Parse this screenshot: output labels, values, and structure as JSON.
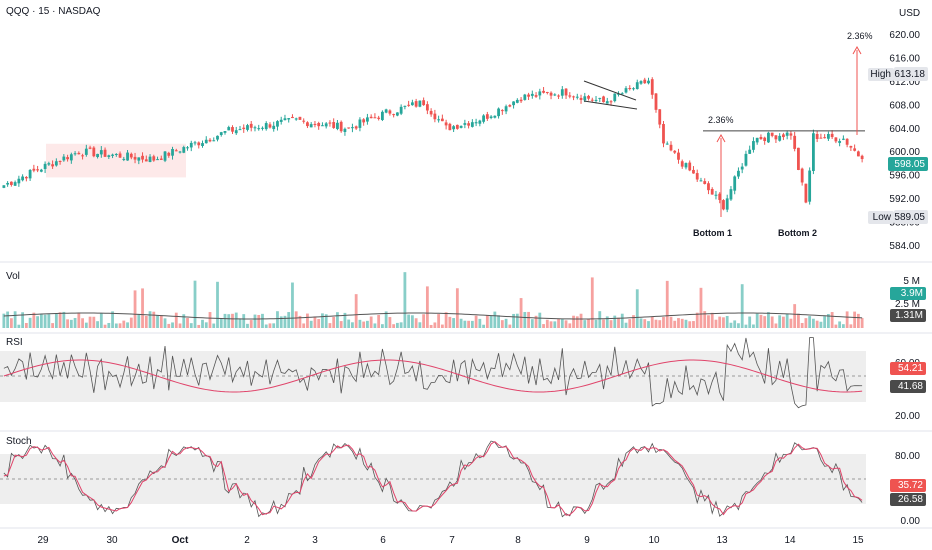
{
  "header": {
    "symbol_label": "QQQ · 15 · NASDAQ",
    "currency": "USD"
  },
  "price_axis": {
    "ticks": [
      "620.00",
      "616.00",
      "612.00",
      "608.00",
      "604.00",
      "600.00",
      "596.00",
      "592.00",
      "588.00",
      "584.00"
    ]
  },
  "price_tags": {
    "high_label": "High",
    "high_value": "613.18",
    "last_value": "598.05",
    "low_label": "Low",
    "low_value": "589.05"
  },
  "annotations": {
    "pct_small": "2.36%",
    "pct_large": "2.36%",
    "bottom1": "Bottom 1",
    "bottom2": "Bottom 2"
  },
  "volume_panel": {
    "label": "Vol",
    "ticks": [
      "5 M",
      "2.5 M"
    ],
    "tag_current": "3.9M",
    "tag_ma": "1.31M"
  },
  "rsi_panel": {
    "label": "RSI",
    "ticks": [
      "60.00",
      "20.00"
    ],
    "tag_ma": "54.21",
    "tag_rsi": "41.68"
  },
  "stoch_panel": {
    "label": "Stoch",
    "ticks": [
      "80.00",
      "0.00"
    ],
    "tag_k": "35.72",
    "tag_d": "26.58"
  },
  "time_axis": {
    "labels": [
      "29",
      "30",
      "Oct",
      "2",
      "3",
      "6",
      "7",
      "8",
      "9",
      "10",
      "13",
      "14",
      "15"
    ]
  },
  "colors": {
    "up": "#26a69a",
    "down": "#ef5350",
    "rsi_ma": "#e0446a",
    "line": "#555555",
    "band": "#eeeeee",
    "highlight": "#fde4e4"
  },
  "chart_data": {
    "type": "candlestick",
    "price_axis": {
      "range": [
        583,
        622
      ]
    },
    "price_key_points": [
      {
        "time": "29",
        "price": 593.0
      },
      {
        "time": "29",
        "price": 597.0
      },
      {
        "time": "29",
        "price": 599.5
      },
      {
        "time": "Oct",
        "price": 598.0
      },
      {
        "time": "2",
        "price": 603.5
      },
      {
        "time": "3",
        "price": 605.5
      },
      {
        "time": "6",
        "price": 604.0
      },
      {
        "time": "6",
        "price": 607.0
      },
      {
        "time": "7",
        "price": 609.0
      },
      {
        "time": "7",
        "price": 604.0
      },
      {
        "time": "8",
        "price": 606.0
      },
      {
        "time": "8",
        "price": 610.0
      },
      {
        "time": "9",
        "price": 611.0
      },
      {
        "time": "9",
        "price": 609.0
      },
      {
        "time": "10",
        "price": 613.18
      },
      {
        "time": "10",
        "price": 601.0
      },
      {
        "time": "13",
        "price": 589.05
      },
      {
        "time": "13",
        "price": 602.0
      },
      {
        "time": "14",
        "price": 603.0
      },
      {
        "time": "14",
        "price": 589.5
      },
      {
        "time": "14",
        "price": 602.5
      },
      {
        "time": "15",
        "price": 602.0
      },
      {
        "time": "15",
        "price": 598.05
      }
    ],
    "resistance_level": 603.5,
    "high": 613.18,
    "low": 589.05,
    "last": 598.05,
    "indicators": {
      "volume": {
        "last": "3.9M",
        "ma": "1.31M"
      },
      "rsi": {
        "rsi": 41.68,
        "ma": 54.21,
        "levels": [
          30,
          70
        ]
      },
      "stoch": {
        "k": 35.72,
        "d": 26.58,
        "levels": [
          20,
          80
        ]
      }
    }
  }
}
